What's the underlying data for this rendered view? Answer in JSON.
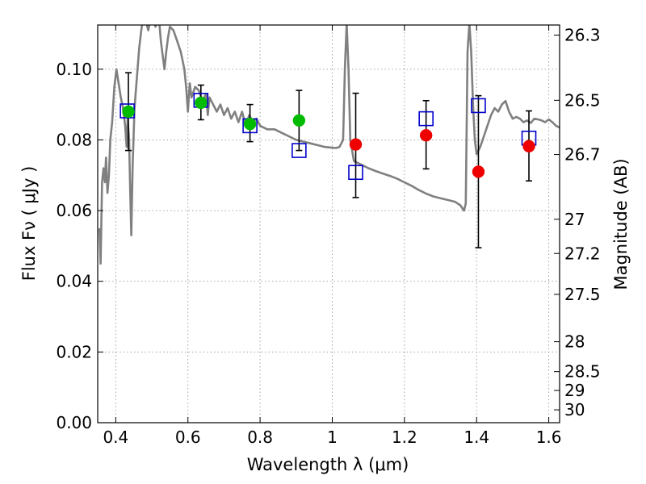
{
  "chart_data": {
    "type": "scatter",
    "title": "",
    "xlabel": "Wavelength  λ (μm)",
    "ylabel": "Flux  Fν  ( μJy )",
    "ylabel_right": "Magnitude (AB)",
    "xlim": [
      0.35,
      1.63
    ],
    "ylim": [
      0,
      0.1125
    ],
    "grid": true,
    "x_ticks": [
      {
        "value": 0.4,
        "label": "0.4"
      },
      {
        "value": 0.6,
        "label": "0.6"
      },
      {
        "value": 0.8,
        "label": "0.8"
      },
      {
        "value": 1.0,
        "label": "1"
      },
      {
        "value": 1.2,
        "label": "1.2"
      },
      {
        "value": 1.4,
        "label": "1.4"
      },
      {
        "value": 1.6,
        "label": "1.6"
      }
    ],
    "y_ticks": [
      {
        "value": 0.0,
        "label": "0.00"
      },
      {
        "value": 0.02,
        "label": "0.02"
      },
      {
        "value": 0.04,
        "label": "0.04"
      },
      {
        "value": 0.06,
        "label": "0.06"
      },
      {
        "value": 0.08,
        "label": "0.08"
      },
      {
        "value": 0.1,
        "label": "0.10"
      }
    ],
    "mag_ticks": [
      "26.3",
      "26.5",
      "26.7",
      "27",
      "27.2",
      "27.5",
      "28",
      "28.5",
      "29",
      "30"
    ],
    "colors": {
      "model": "#808080",
      "model_photometry": "#0000cc",
      "optical": "#00bb00",
      "infrared": "#ee0000",
      "errorbar": "#000000",
      "grid": "#999999"
    },
    "model_spectrum": [
      [
        0.355,
        0.055
      ],
      [
        0.358,
        0.045
      ],
      [
        0.362,
        0.068
      ],
      [
        0.366,
        0.072
      ],
      [
        0.37,
        0.068
      ],
      [
        0.373,
        0.075
      ],
      [
        0.377,
        0.065
      ],
      [
        0.381,
        0.07
      ],
      [
        0.385,
        0.08
      ],
      [
        0.39,
        0.085
      ],
      [
        0.396,
        0.095
      ],
      [
        0.402,
        0.1
      ],
      [
        0.408,
        0.096
      ],
      [
        0.414,
        0.092
      ],
      [
        0.42,
        0.089
      ],
      [
        0.426,
        0.084
      ],
      [
        0.43,
        0.078
      ],
      [
        0.433,
        0.086
      ],
      [
        0.437,
        0.08
      ],
      [
        0.44,
        0.066
      ],
      [
        0.443,
        0.053
      ],
      [
        0.447,
        0.073
      ],
      [
        0.452,
        0.089
      ],
      [
        0.458,
        0.097
      ],
      [
        0.465,
        0.106
      ],
      [
        0.472,
        0.112
      ],
      [
        0.48,
        0.115
      ],
      [
        0.49,
        0.111
      ],
      [
        0.5,
        0.116
      ],
      [
        0.51,
        0.112
      ],
      [
        0.52,
        0.114
      ],
      [
        0.525,
        0.108
      ],
      [
        0.53,
        0.104
      ],
      [
        0.535,
        0.1
      ],
      [
        0.54,
        0.105
      ],
      [
        0.545,
        0.109
      ],
      [
        0.55,
        0.112
      ],
      [
        0.56,
        0.111
      ],
      [
        0.57,
        0.108
      ],
      [
        0.58,
        0.105
      ],
      [
        0.59,
        0.1
      ],
      [
        0.595,
        0.095
      ],
      [
        0.6,
        0.088
      ],
      [
        0.605,
        0.096
      ],
      [
        0.61,
        0.092
      ],
      [
        0.62,
        0.095
      ],
      [
        0.63,
        0.094
      ],
      [
        0.64,
        0.091
      ],
      [
        0.65,
        0.093
      ],
      [
        0.655,
        0.087
      ],
      [
        0.66,
        0.092
      ],
      [
        0.67,
        0.09
      ],
      [
        0.68,
        0.088
      ],
      [
        0.69,
        0.09
      ],
      [
        0.7,
        0.087
      ],
      [
        0.71,
        0.089
      ],
      [
        0.72,
        0.086
      ],
      [
        0.73,
        0.088
      ],
      [
        0.74,
        0.085
      ],
      [
        0.75,
        0.088
      ],
      [
        0.76,
        0.084
      ],
      [
        0.77,
        0.087
      ],
      [
        0.78,
        0.085
      ],
      [
        0.79,
        0.086
      ],
      [
        0.8,
        0.084
      ],
      [
        0.82,
        0.083
      ],
      [
        0.84,
        0.083
      ],
      [
        0.86,
        0.082
      ],
      [
        0.88,
        0.081
      ],
      [
        0.9,
        0.08
      ],
      [
        0.92,
        0.0795
      ],
      [
        0.94,
        0.079
      ],
      [
        0.96,
        0.0785
      ],
      [
        0.98,
        0.078
      ],
      [
        1.0,
        0.0778
      ],
      [
        1.01,
        0.0777
      ],
      [
        1.02,
        0.078
      ],
      [
        1.03,
        0.08
      ],
      [
        1.035,
        0.1
      ],
      [
        1.04,
        0.113
      ],
      [
        1.045,
        0.1
      ],
      [
        1.05,
        0.08
      ],
      [
        1.06,
        0.074
      ],
      [
        1.08,
        0.073
      ],
      [
        1.1,
        0.072
      ],
      [
        1.12,
        0.0712
      ],
      [
        1.14,
        0.0705
      ],
      [
        1.16,
        0.0698
      ],
      [
        1.18,
        0.069
      ],
      [
        1.2,
        0.068
      ],
      [
        1.22,
        0.067
      ],
      [
        1.24,
        0.0658
      ],
      [
        1.26,
        0.0648
      ],
      [
        1.28,
        0.064
      ],
      [
        1.3,
        0.0635
      ],
      [
        1.32,
        0.063
      ],
      [
        1.34,
        0.0625
      ],
      [
        1.355,
        0.0615
      ],
      [
        1.365,
        0.06
      ],
      [
        1.37,
        0.062
      ],
      [
        1.375,
        0.105
      ],
      [
        1.38,
        0.113
      ],
      [
        1.385,
        0.105
      ],
      [
        1.39,
        0.09
      ],
      [
        1.395,
        0.08
      ],
      [
        1.4,
        0.076
      ],
      [
        1.41,
        0.078
      ],
      [
        1.42,
        0.081
      ],
      [
        1.43,
        0.084
      ],
      [
        1.44,
        0.087
      ],
      [
        1.45,
        0.089
      ],
      [
        1.46,
        0.088
      ],
      [
        1.47,
        0.09
      ],
      [
        1.48,
        0.091
      ],
      [
        1.49,
        0.088
      ],
      [
        1.5,
        0.086
      ],
      [
        1.51,
        0.0865
      ],
      [
        1.52,
        0.086
      ],
      [
        1.53,
        0.085
      ],
      [
        1.54,
        0.0855
      ],
      [
        1.55,
        0.0848
      ],
      [
        1.56,
        0.086
      ],
      [
        1.57,
        0.0858
      ],
      [
        1.58,
        0.0855
      ],
      [
        1.59,
        0.085
      ],
      [
        1.6,
        0.0858
      ],
      [
        1.61,
        0.085
      ],
      [
        1.62,
        0.084
      ],
      [
        1.63,
        0.0835
      ]
    ],
    "series": [
      {
        "marker": "open-square",
        "points": [
          {
            "x": 0.432,
            "y": 0.0882
          },
          {
            "x": 0.636,
            "y": 0.0912
          },
          {
            "x": 0.772,
            "y": 0.084
          },
          {
            "x": 0.908,
            "y": 0.077
          },
          {
            "x": 1.065,
            "y": 0.0708
          },
          {
            "x": 1.26,
            "y": 0.086
          },
          {
            "x": 1.405,
            "y": 0.0897
          },
          {
            "x": 1.545,
            "y": 0.0805
          }
        ]
      },
      {
        "marker": "filled-circle",
        "color_key": "optical",
        "points": [
          {
            "x": 0.435,
            "y": 0.088,
            "err_low": 0.011,
            "err_high": 0.011
          },
          {
            "x": 0.636,
            "y": 0.0905,
            "err_low": 0.0048,
            "err_high": 0.005
          },
          {
            "x": 0.772,
            "y": 0.0845,
            "err_low": 0.005,
            "err_high": 0.0055
          },
          {
            "x": 0.908,
            "y": 0.0855,
            "err_low": 0.0085,
            "err_high": 0.0085
          }
        ]
      },
      {
        "marker": "filled-circle",
        "color_key": "infrared",
        "points": [
          {
            "x": 1.065,
            "y": 0.0787,
            "err_low": 0.015,
            "err_high": 0.0145
          },
          {
            "x": 1.26,
            "y": 0.0813,
            "err_low": 0.0095,
            "err_high": 0.0098
          },
          {
            "x": 1.405,
            "y": 0.071,
            "err_low": 0.0215,
            "err_high": 0.0215
          },
          {
            "x": 1.545,
            "y": 0.0782,
            "err_low": 0.0098,
            "err_high": 0.01
          }
        ]
      }
    ]
  }
}
